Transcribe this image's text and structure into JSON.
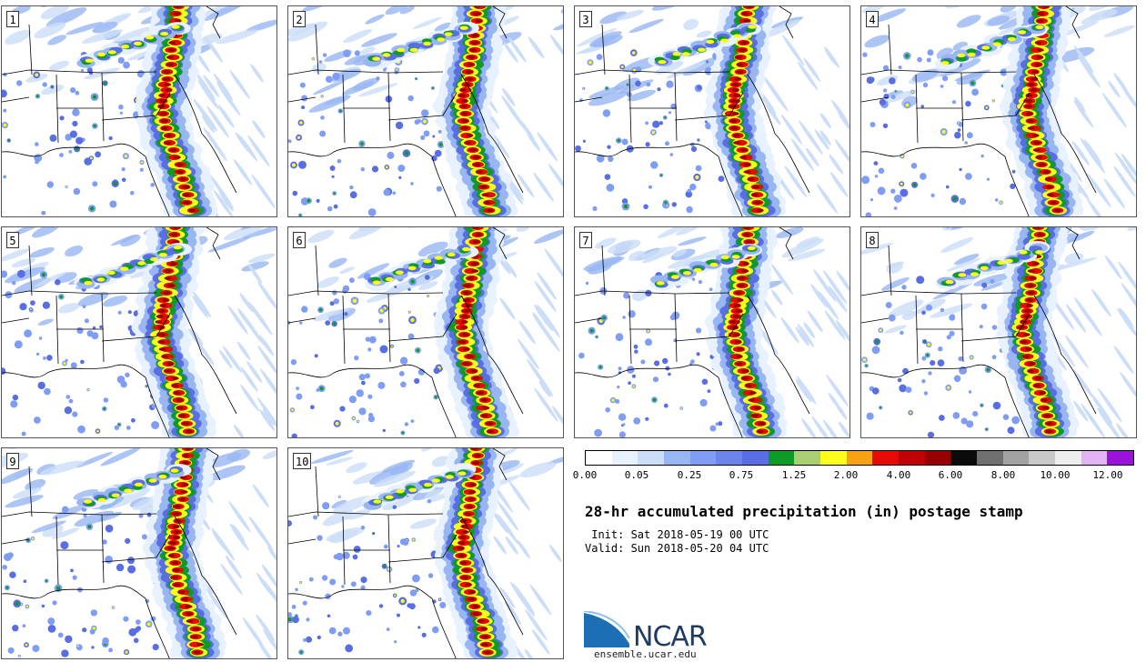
{
  "panels": [
    "1",
    "2",
    "3",
    "4",
    "5",
    "6",
    "7",
    "8",
    "9",
    "10"
  ],
  "colorbar": {
    "colors": [
      "#ffffff",
      "#e7f1ff",
      "#ccddf8",
      "#98b6f2",
      "#7f9df5",
      "#6a86ec",
      "#5a6ee3",
      "#0e9a26",
      "#a9cf72",
      "#fcfc1e",
      "#f7a213",
      "#e60a06",
      "#c00206",
      "#960000",
      "#0a0a0a",
      "#707070",
      "#a2a2a2",
      "#c8c8c8",
      "#ededed",
      "#e2b2f4",
      "#9a13da"
    ],
    "labels": [
      "0.00",
      "0.05",
      "0.25",
      "0.75",
      "1.25",
      "2.00",
      "4.00",
      "6.00",
      "8.00",
      "10.00",
      "12.00"
    ]
  },
  "title": "28-hr accumulated precipitation (in) postage stamp",
  "init_line": " Init: Sat 2018-05-19 00 UTC",
  "valid_line": "Valid: Sun 2018-05-20 04 UTC",
  "logo_text": "NCAR",
  "url": "ensemble.ucar.edu"
}
